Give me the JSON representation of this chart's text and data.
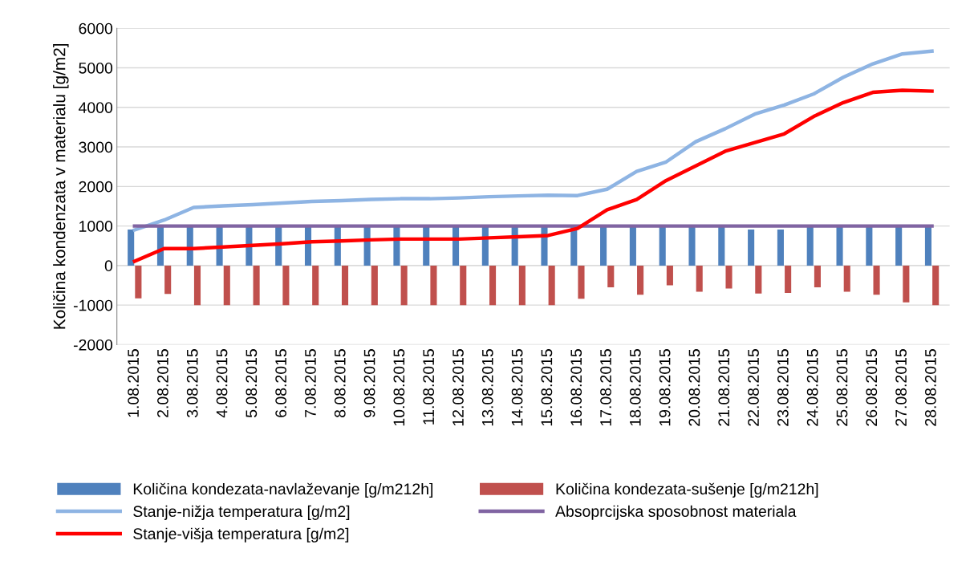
{
  "chart_data": {
    "type": "bar",
    "ylabel": "Količina kondenzata v materialu [g/m2]",
    "categories": [
      "1.08.2015",
      "2.08.2015",
      "3.08.2015",
      "4.08.2015",
      "5.08.2015",
      "6.08.2015",
      "7.08.2015",
      "8.08.2015",
      "9.08.2015",
      "10.08.2015",
      "11.08.2015",
      "12.08.2015",
      "13.08.2015",
      "14.08.2015",
      "15.08.2015",
      "16.08.2015",
      "17.08.2015",
      "18.08.2015",
      "19.08.2015",
      "20.08.2015",
      "21.08.2015",
      "22.08.2015",
      "23.08.2015",
      "24.08.2015",
      "25.08.2015",
      "26.08.2015",
      "27.08.2015",
      "28.08.2015"
    ],
    "series": [
      {
        "name": "Količina kondezata-navlaževanje [g/m212h]",
        "color": "#4f81bd",
        "values": [
          910,
          1000,
          1000,
          1000,
          1000,
          1000,
          1000,
          1000,
          1000,
          1000,
          1000,
          1000,
          1000,
          1000,
          1000,
          1000,
          1000,
          1000,
          1000,
          1000,
          1000,
          910,
          910,
          1000,
          1000,
          1000,
          1000,
          1000
        ]
      },
      {
        "name": "Količina kondezata-sušenje [g/m212h]",
        "color": "#c0504d",
        "values": [
          -830,
          -720,
          -1000,
          -1000,
          -1000,
          -1000,
          -1000,
          -1000,
          -1000,
          -1000,
          -1000,
          -1000,
          -1000,
          -1000,
          -1000,
          -840,
          -550,
          -740,
          -500,
          -660,
          -580,
          -710,
          -690,
          -550,
          -660,
          -740,
          -930,
          -1000
        ]
      },
      {
        "name": "Stanje-nižja temperatura [g/m2]",
        "type": "line",
        "color": "#8eb4e3",
        "values": [
          900,
          1150,
          1470,
          1510,
          1540,
          1580,
          1620,
          1640,
          1670,
          1690,
          1690,
          1710,
          1740,
          1760,
          1780,
          1770,
          1930,
          2380,
          2620,
          3130,
          3460,
          3830,
          4060,
          4340,
          4760,
          5100,
          5350,
          5420
        ]
      },
      {
        "name": "Absoprcijska sposobnost materiala",
        "type": "line",
        "color": "#8064a2",
        "values": [
          1000,
          1000,
          1000,
          1000,
          1000,
          1000,
          1000,
          1000,
          1000,
          1000,
          1000,
          1000,
          1000,
          1000,
          1000,
          1000,
          1000,
          1000,
          1000,
          1000,
          1000,
          1000,
          1000,
          1000,
          1000,
          1000,
          1000,
          1000
        ]
      },
      {
        "name": "Stanje-višja temperatura [g/m2]",
        "type": "line",
        "color": "#ff0000",
        "values": [
          110,
          430,
          430,
          470,
          510,
          550,
          600,
          620,
          650,
          670,
          670,
          670,
          700,
          730,
          760,
          940,
          1410,
          1670,
          2150,
          2520,
          2890,
          3110,
          3330,
          3770,
          4120,
          4380,
          4430,
          4410
        ]
      }
    ],
    "ylim": [
      -2000,
      6000
    ],
    "yticks": [
      -2000,
      -1000,
      0,
      1000,
      2000,
      3000,
      4000,
      5000,
      6000
    ],
    "grid": "y",
    "legend": "bottom",
    "marker": "none",
    "line_style": "solid"
  }
}
